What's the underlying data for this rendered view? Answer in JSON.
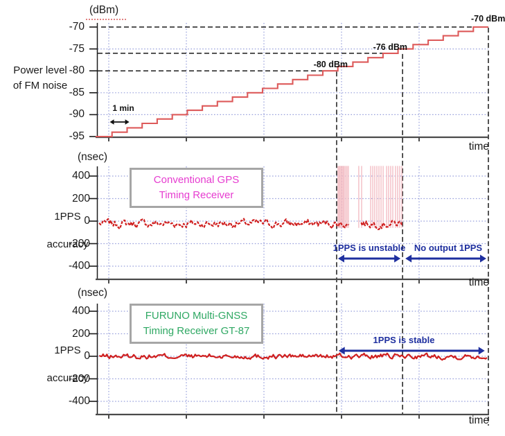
{
  "colors": {
    "staircase_red": "#dd5a5a",
    "trace_red": "#cf1f1f",
    "spike_pink": "#f3bdc4",
    "grid_blue": "#98a0dc",
    "guide_black": "#1a1a1a",
    "axis_gray": "#4a4a4a",
    "navy": "#1e2f9f",
    "magenta": "#e63cd0",
    "green": "#2fa863",
    "box_border_gray": "#a6a6a6",
    "background": "#ffffff"
  },
  "panels": {
    "power": {
      "unit_label": "(dBm)",
      "side_label": [
        "Power level",
        "of FM noise"
      ],
      "time_label": "time",
      "y_ticks": [
        "-70",
        "-75",
        "-80",
        "-85",
        "-90",
        "-95"
      ],
      "annotations": {
        "one_min": "1 min",
        "cross_80": "-80 dBm",
        "cross_76": "-76 dBm",
        "cross_70": "-70 dBm"
      }
    },
    "gps": {
      "unit_label": "(nsec)",
      "side_label": [
        "1PPS",
        "accuracy"
      ],
      "time_label": "time",
      "y_ticks": [
        "400",
        "200",
        "0",
        "-200",
        "-400"
      ],
      "box_label": [
        "Conventional GPS",
        "Timing Receiver"
      ],
      "region_labels": {
        "unstable": "1PPS is unstable",
        "no_output": "No output 1PPS"
      }
    },
    "gt87": {
      "unit_label": "(nsec)",
      "side_label": [
        "1PPS",
        "accuracy"
      ],
      "time_label": "time",
      "y_ticks": [
        "400",
        "200",
        "0",
        "-200",
        "-400"
      ],
      "box_label": [
        "FURUNO Multi-GNSS",
        "Timing Receiver GT-87"
      ],
      "region_labels": {
        "stable": "1PPS is stable"
      }
    }
  },
  "chart_data": [
    {
      "type": "line",
      "subtype": "step",
      "title": "(dBm)",
      "ylabel": "Power level of FM noise",
      "xlabel": "time",
      "x_unit": "minutes",
      "step_interval_min": 1,
      "ylim": [
        -95,
        -70
      ],
      "y_ticks": [
        -70,
        -75,
        -80,
        -85,
        -90,
        -95
      ],
      "grid_y_dbm": [
        -75,
        -85,
        -90
      ],
      "values_dbm_per_min": [
        -95,
        -94,
        -93,
        -92,
        -91,
        -90,
        -89,
        -88,
        -87,
        -86,
        -85,
        -84,
        -83,
        -82,
        -81,
        -80,
        -79,
        -78,
        -77,
        -76,
        -75,
        -74,
        -73,
        -72,
        -71,
        -70
      ],
      "dashed_guides_dbm": [
        -70,
        -76,
        -80
      ],
      "event_markers": [
        {
          "t_min": 15.92,
          "dbm": -80,
          "label": "-80 dBm"
        },
        {
          "t_min": 20.3,
          "dbm": -76,
          "label": "-76 dBm"
        },
        {
          "t_min": 26.0,
          "dbm": -70,
          "label": "-70 dBm"
        }
      ],
      "scale_annotation": {
        "label": "1 min",
        "t0_min": 0.9,
        "t1_min": 2.1
      }
    },
    {
      "type": "line",
      "title": "(nsec)",
      "ylabel": "1PPS accuracy",
      "xlabel": "time",
      "ylim": [
        -500,
        500
      ],
      "y_ticks": [
        400,
        200,
        0,
        -200,
        -400
      ],
      "grid_y_nsec": [
        400,
        200,
        0,
        -200,
        -400
      ],
      "series_label": "Conventional GPS Timing Receiver",
      "baseline_nsec": -22,
      "noise_amplitude_nsec": 22,
      "trace_segments_min": [
        [
          0.15,
          16.75
        ],
        [
          17.55,
          20.3
        ]
      ],
      "spike_times_min": [
        16.01,
        16.08,
        16.15,
        16.22,
        16.29,
        16.36,
        16.43,
        16.52,
        16.61,
        16.7,
        17.39,
        17.58,
        18.18,
        18.32,
        18.45,
        18.59,
        18.73,
        18.87,
        19.01,
        19.24,
        19.37,
        19.51,
        19.65,
        19.83,
        19.97,
        20.11,
        20.25
      ],
      "spike_range_nsec": [
        490,
        -60
      ],
      "regions": [
        {
          "label": "1PPS is unstable",
          "t0_min": 15.92,
          "t1_min": 20.3
        },
        {
          "label": "No output 1PPS",
          "t0_min": 20.3,
          "t1_min": 26.0
        }
      ]
    },
    {
      "type": "line",
      "title": "(nsec)",
      "ylabel": "1PPS accuracy",
      "xlabel": "time",
      "ylim": [
        -500,
        500
      ],
      "y_ticks": [
        400,
        200,
        0,
        -200,
        -400
      ],
      "grid_y_nsec": [
        400,
        200,
        0,
        -200,
        -400
      ],
      "series_label": "FURUNO Multi-GNSS Timing Receiver GT-87",
      "baseline_nsec": 0,
      "noise_amplitude_nsec": 14,
      "trace_segments_min": [
        [
          0.15,
          25.95
        ]
      ],
      "spike_times_min": [],
      "regions": [
        {
          "label": "1PPS is stable",
          "t0_min": 16.0,
          "t1_min": 25.85
        }
      ]
    }
  ]
}
